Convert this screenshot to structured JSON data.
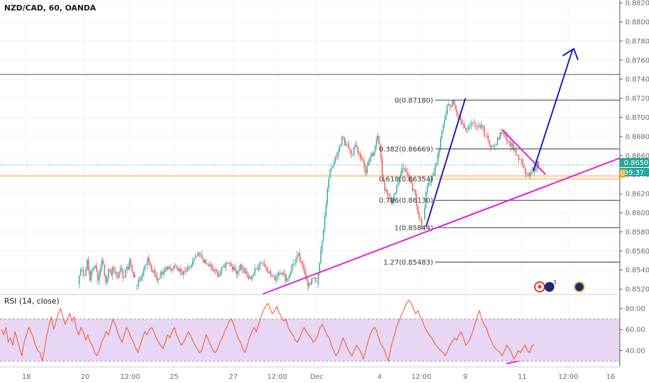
{
  "header": {
    "symbol": "NZD/CAD, 60, OANDA"
  },
  "rsi_header": {
    "label": "RSI (14, close)"
  },
  "price_axis": {
    "ticks": [
      "0.88200",
      "0.88000",
      "0.87800",
      "0.87600",
      "0.87400",
      "0.87200",
      "0.87000",
      "0.86800",
      "0.86600",
      "0.86400",
      "0.86200",
      "0.86000",
      "0.85800",
      "0.85600",
      "0.85400",
      "0.85200"
    ],
    "last_price": "0.86501",
    "countdown": "39:37",
    "orange_tag": "0"
  },
  "rsi_axis": {
    "ticks": [
      "80.00",
      "60.00",
      "40.00"
    ]
  },
  "time_axis": {
    "ticks": [
      "18",
      "20",
      "12:00",
      "25",
      "27",
      "12:00",
      "Dec",
      "4",
      "12:00",
      "9",
      "11",
      "12:00",
      "16"
    ]
  },
  "fib_levels": [
    {
      "label": "0(0.87180)",
      "price": 0.8718
    },
    {
      "label": "0.382(0.86669)",
      "price": 0.86669
    },
    {
      "label": "0.618(0.86354)",
      "price": 0.86354
    },
    {
      "label": "0.786(0.86130)",
      "price": 0.8613
    },
    {
      "label": "1(0.85844)",
      "price": 0.85844
    },
    {
      "label": "1.27(0.85483)",
      "price": 0.85483
    }
  ],
  "event_badge_count": "3",
  "colors": {
    "up": "#26a69a",
    "down": "#ef5350",
    "trend": "#e61ed6",
    "impulse": "#1a1ab8",
    "fib": "#333333",
    "orange": "#f5a623",
    "rsi_line": "#f4511e",
    "rsi_band": "#e8d6f5",
    "price_tag": "#26a69a",
    "countdown_tag": "#26a69a",
    "orange_tag": "#f5a623"
  },
  "chart_data": {
    "type": "candlestick",
    "title": "NZD/CAD, 60, OANDA",
    "ylim": [
      0.8515,
      0.8823
    ],
    "rsi": {
      "label": "RSI (14, close)",
      "ylim": [
        25,
        92
      ],
      "band": [
        30,
        70
      ],
      "levels": [
        80,
        60,
        40
      ]
    },
    "price_path": [
      [
        0.8525,
        0.8535,
        0.8545,
        0.854,
        0.853,
        0.8542,
        0.855,
        0.8538,
        0.8528,
        0.8545,
        0.8535,
        0.855,
        0.854,
        0.853,
        0.8535,
        0.8545,
        0.8552,
        0.854,
        0.853,
        0.8528,
        0.8538,
        0.8542,
        0.8533,
        0.8545,
        0.854,
        0.8535,
        0.853,
        0.854,
        0.8545,
        0.8535,
        0.853,
        0.8538,
        0.8545,
        0.8542,
        0.855,
        0.8545,
        0.8535,
        0.8535,
        0.8528
      ],
      [
        0.8525,
        0.853,
        0.8535,
        0.8545,
        0.8552,
        0.854,
        0.8535,
        0.853,
        0.8535,
        0.854,
        0.8545,
        0.8542,
        0.854,
        0.8545,
        0.854,
        0.8535,
        0.8538,
        0.854,
        0.8545,
        0.855,
        0.8555,
        0.8555,
        0.855,
        0.8545,
        0.8545,
        0.854,
        0.8538,
        0.8535,
        0.854,
        0.8545,
        0.855,
        0.8545,
        0.854,
        0.8538,
        0.8545,
        0.854,
        0.8535,
        0.853,
        0.8535,
        0.854,
        0.8545,
        0.855,
        0.8545,
        0.854,
        0.8535,
        0.853,
        0.8535,
        0.854,
        0.8535,
        0.853,
        0.8535,
        0.8545,
        0.855,
        0.8555,
        0.8545,
        0.854,
        0.8525,
        0.8525,
        0.8535,
        0.8525
      ],
      [
        0.8525,
        0.8545,
        0.856,
        0.858,
        0.86,
        0.862,
        0.864,
        0.865,
        0.8648,
        0.8655,
        0.866,
        0.8668,
        0.8675,
        0.868,
        0.867,
        0.8675,
        0.8668,
        0.866,
        0.8665,
        0.867,
        0.8665,
        0.866,
        0.8655,
        0.865,
        0.864,
        0.8648,
        0.8655,
        0.866,
        0.8665,
        0.867,
        0.8678,
        0.8672
      ],
      [
        0.8672,
        0.864,
        0.8625,
        0.862,
        0.8615,
        0.861,
        0.862,
        0.863,
        0.864,
        0.865,
        0.8645,
        0.8638,
        0.863,
        0.8625,
        0.8615,
        0.86,
        0.859,
        0.8585
      ],
      [
        0.859,
        0.862,
        0.8628,
        0.8635,
        0.864,
        0.8645,
        0.8655,
        0.8665,
        0.868,
        0.8695,
        0.8705,
        0.8712,
        0.871,
        0.8716,
        0.8712,
        0.8705,
        0.87,
        0.8695,
        0.869,
        0.869,
        0.8688,
        0.8692,
        0.8694,
        0.869,
        0.8688,
        0.869,
        0.8692,
        0.8685,
        0.868,
        0.8675,
        0.8672,
        0.8668,
        0.867,
        0.8675,
        0.868,
        0.8686,
        0.8684,
        0.868,
        0.8675,
        0.8672,
        0.867,
        0.8665,
        0.8658,
        0.8655,
        0.8652,
        0.8645,
        0.864,
        0.8638,
        0.864,
        0.8645,
        0.8648,
        0.8652,
        0.865
      ]
    ],
    "rsi_path": [
      60,
      55,
      62,
      48,
      52,
      45,
      58,
      50,
      42,
      35,
      48,
      55,
      62,
      58,
      52,
      45,
      40,
      38,
      30,
      42,
      55,
      65,
      72,
      60,
      68,
      75,
      80,
      72,
      65,
      70,
      75,
      68,
      72,
      60,
      55,
      62,
      58,
      50,
      55,
      48,
      45,
      38,
      35,
      40,
      48,
      52,
      58,
      55,
      62,
      70,
      65,
      58,
      52,
      48,
      55,
      62,
      58,
      52,
      48,
      42,
      38,
      45,
      52,
      58,
      55,
      60,
      62,
      58,
      52,
      48,
      45,
      42,
      48,
      55,
      52,
      58,
      62,
      55,
      50,
      45,
      48,
      52,
      58,
      55,
      50,
      45,
      42,
      38,
      40,
      48,
      55,
      50,
      45,
      40,
      38,
      42,
      48,
      52,
      58,
      62,
      68,
      70,
      65,
      58,
      52,
      48,
      42,
      38,
      45,
      52,
      58,
      62,
      58,
      65,
      72,
      78,
      82,
      85,
      80,
      75,
      78,
      82,
      76,
      72,
      68,
      70,
      62,
      58,
      55,
      50,
      48,
      52,
      58,
      62,
      58,
      55,
      52,
      48,
      50,
      55,
      62,
      65,
      60,
      55,
      52,
      45,
      40,
      35,
      38,
      45,
      52,
      48,
      42,
      38,
      35,
      40,
      45,
      42,
      38,
      32,
      40,
      48,
      55,
      60,
      62,
      58,
      50,
      45,
      42,
      35,
      30,
      42,
      50,
      58,
      65,
      70,
      75,
      80,
      85,
      88,
      85,
      80,
      75,
      78,
      72,
      68,
      62,
      58,
      55,
      52,
      48,
      45,
      42,
      40,
      38,
      35,
      40,
      45,
      48,
      52,
      50,
      55,
      58,
      52,
      45,
      48,
      52,
      58,
      65,
      72,
      78,
      70,
      65,
      62,
      55,
      50,
      45,
      42,
      40,
      38,
      35,
      40,
      45,
      42,
      38,
      32,
      35,
      40,
      38,
      42,
      45,
      40,
      38,
      44,
      46
    ],
    "trend_lines": [
      {
        "color": "trend",
        "from": [
          "12:00 (27)",
          0.8515
        ],
        "to": [
          "16",
          0.866
        ]
      },
      {
        "color": "trend",
        "from": [
          "11",
          0.87
        ],
        "to": [
          "11 12:00",
          0.8647
        ]
      },
      {
        "color": "impulse",
        "from": [
          "4 12:00",
          0.8584
        ],
        "to": [
          "9",
          0.8718
        ]
      },
      {
        "color": "impulse",
        "from": [
          "11",
          0.865
        ],
        "to": [
          "12:00 (11)",
          0.877
        ]
      }
    ],
    "horizontal_lines": [
      {
        "price": 0.8745,
        "color": "#555555"
      },
      {
        "price": 0.86385,
        "color": "orange"
      }
    ]
  }
}
